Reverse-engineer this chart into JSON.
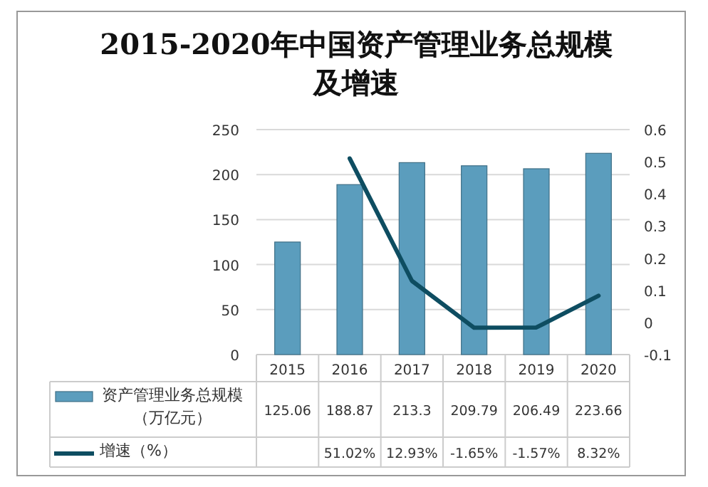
{
  "chart_data": {
    "type": "bar",
    "title": "2015-2020年中国资产管理业务总规模及增速",
    "categories": [
      "2015",
      "2016",
      "2017",
      "2018",
      "2019",
      "2020"
    ],
    "series": [
      {
        "name": "资产管理业务总规模（万亿元）",
        "color": "#5b9dbd",
        "values": [
          125.06,
          188.87,
          213.3,
          209.79,
          206.49,
          223.66
        ],
        "value_labels": [
          "125.06",
          "188.87",
          "213.3",
          "209.79",
          "206.49",
          "223.66"
        ]
      },
      {
        "name": "增速（%）",
        "type": "line",
        "axis": "y2",
        "color": "#0e4d61",
        "values": [
          null,
          0.5102,
          0.1293,
          -0.0165,
          -0.0157,
          0.0832
        ],
        "value_labels": [
          null,
          "51.02%",
          "12.93%",
          "-1.65%",
          "-1.57%",
          "8.32%"
        ]
      }
    ],
    "ylim": [
      0,
      250
    ],
    "yticks": [
      0,
      50,
      100,
      150,
      200,
      250
    ],
    "y2lim": [
      -0.1,
      0.6
    ],
    "y2ticks": [
      -0.1,
      0,
      0.1,
      0.2,
      0.3,
      0.4,
      0.5,
      0.6
    ],
    "grid": "y",
    "legend": "bottom left"
  }
}
